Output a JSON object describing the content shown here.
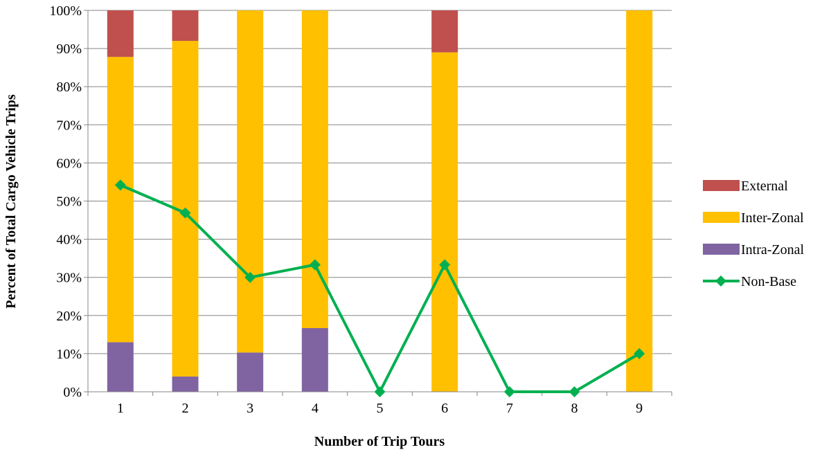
{
  "chart_data": {
    "type": "bar",
    "stacked": true,
    "categories": [
      "1",
      "2",
      "3",
      "4",
      "5",
      "6",
      "7",
      "8",
      "9"
    ],
    "xlabel": "Number of Trip Tours",
    "ylabel": "Percent of Total Cargo Vehicle Trips",
    "ylim": [
      0,
      100
    ],
    "y_ticks": [
      0,
      10,
      20,
      30,
      40,
      50,
      60,
      70,
      80,
      90,
      100
    ],
    "y_tick_labels": [
      "0%",
      "10%",
      "20%",
      "30%",
      "40%",
      "50%",
      "60%",
      "70%",
      "80%",
      "90%",
      "100%"
    ],
    "grid": true,
    "legend_position": "right",
    "series": [
      {
        "name": "Intra-Zonal",
        "kind": "bar",
        "color": "#8064A2",
        "values": [
          13,
          4,
          10.3,
          16.7,
          0,
          0,
          0,
          0,
          0
        ]
      },
      {
        "name": "Inter-Zonal",
        "kind": "bar",
        "color": "#FFC000",
        "values": [
          74.8,
          88,
          89.7,
          83.3,
          0,
          89,
          0,
          0,
          100
        ]
      },
      {
        "name": "External",
        "kind": "bar",
        "color": "#C0504D",
        "values": [
          12.2,
          8,
          0,
          0,
          0,
          11,
          0,
          0,
          0
        ]
      },
      {
        "name": "Non-Base",
        "kind": "line",
        "color": "#00B050",
        "marker": "diamond",
        "values": [
          54.2,
          46.9,
          30,
          33.3,
          0,
          33.3,
          0,
          0,
          10
        ]
      }
    ],
    "legend": [
      {
        "name": "External",
        "color": "#C0504D",
        "symbol": "box"
      },
      {
        "name": "Inter-Zonal",
        "color": "#FFC000",
        "symbol": "box"
      },
      {
        "name": "Intra-Zonal",
        "color": "#8064A2",
        "symbol": "box"
      },
      {
        "name": "Non-Base",
        "color": "#00B050",
        "symbol": "line-diamond"
      }
    ]
  }
}
